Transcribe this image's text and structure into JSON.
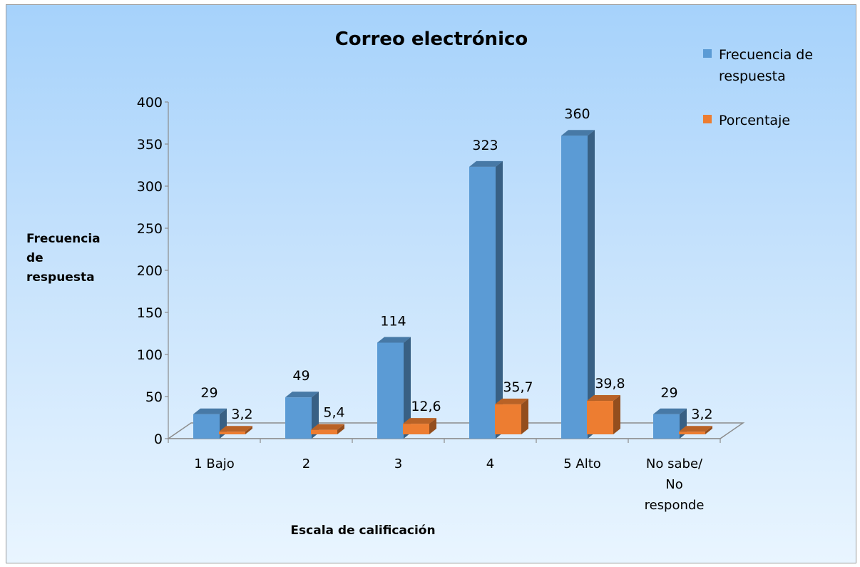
{
  "chart_data": {
    "type": "bar",
    "title": "Correo electrónico",
    "xlabel": "Escala de calificación",
    "ylabel_lines": [
      "Frecuencia",
      "de",
      "respuesta"
    ],
    "categories": [
      [
        "1 Bajo"
      ],
      [
        "2"
      ],
      [
        "3"
      ],
      [
        "4"
      ],
      [
        "5 Alto"
      ],
      [
        "No sabe/",
        "No",
        "responde"
      ]
    ],
    "series": [
      {
        "name_lines": [
          "Frecuencia de",
          "respuesta"
        ],
        "color": "#5b9bd5",
        "values": [
          29,
          49,
          114,
          323,
          360,
          29
        ],
        "labels": [
          "29",
          "49",
          "114",
          "323",
          "360",
          "29"
        ]
      },
      {
        "name_lines": [
          "Porcentaje"
        ],
        "color": "#ed7d31",
        "values": [
          3.2,
          5.4,
          12.6,
          35.7,
          39.8,
          3.2
        ],
        "labels": [
          "3,2",
          "5,4",
          "12,6",
          "35,7",
          "39,8",
          "3,2"
        ]
      }
    ],
    "yticks": [
      "0",
      "50",
      "100",
      "150",
      "200",
      "250",
      "300",
      "350",
      "400"
    ],
    "ylim": [
      0,
      400
    ],
    "grid": false,
    "legend_position": "top-right",
    "projection": "3d"
  }
}
